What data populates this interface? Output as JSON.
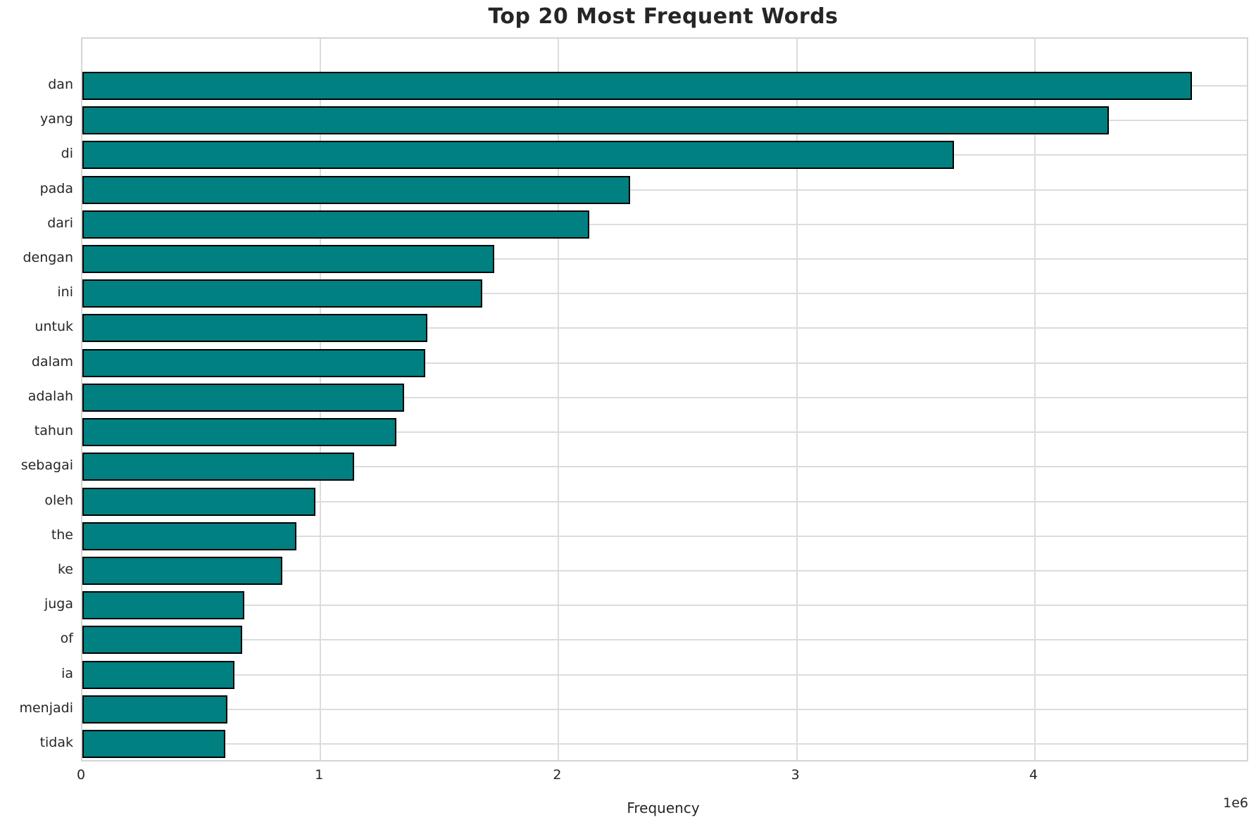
{
  "colors": {
    "bar_fill": "#008080",
    "bar_edge": "#000000",
    "grid": "#dcdcdc",
    "spine": "#d5d5d5",
    "text": "#262626",
    "background": "#ffffff"
  },
  "chart_data": {
    "type": "bar",
    "orientation": "horizontal",
    "title": "Top 20 Most Frequent Words",
    "xlabel": "Frequency",
    "ylabel": "",
    "x_offset_text": "1e6",
    "categories": [
      "dan",
      "yang",
      "di",
      "pada",
      "dari",
      "dengan",
      "ini",
      "untuk",
      "dalam",
      "adalah",
      "tahun",
      "sebagai",
      "oleh",
      "the",
      "ke",
      "juga",
      "of",
      "ia",
      "menjadi",
      "tidak"
    ],
    "values": [
      4660000,
      4310000,
      3660000,
      2300000,
      2130000,
      1730000,
      1680000,
      1450000,
      1440000,
      1350000,
      1320000,
      1140000,
      980000,
      900000,
      840000,
      680000,
      670000,
      640000,
      610000,
      600000
    ],
    "xlim": [
      0,
      4890000
    ],
    "xticks": [
      0,
      1000000,
      2000000,
      3000000,
      4000000
    ],
    "xtick_labels": [
      "0",
      "1",
      "2",
      "3",
      "4"
    ],
    "grid": true,
    "legend": false
  }
}
